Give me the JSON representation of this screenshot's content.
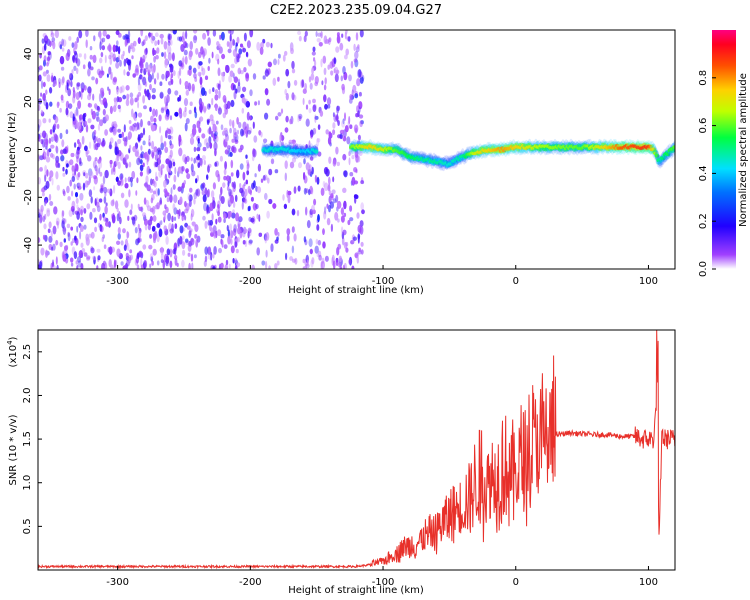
{
  "title": "C2E2.2023.235.09.04.G27",
  "chart_data": [
    {
      "type": "heatmap",
      "xlabel": "Height of straight line (km)",
      "ylabel": "Frequency (Hz)",
      "xlim": [
        -360,
        120
      ],
      "ylim": [
        -50,
        50
      ],
      "xticks": [
        -300,
        -200,
        -100,
        0,
        100
      ],
      "yticks": [
        -40,
        -20,
        0,
        20,
        40
      ],
      "noise_region_x": [
        -360,
        -115
      ],
      "signal_track": {
        "x": [
          -190,
          -175,
          -160,
          -125,
          -110,
          -100,
          -90,
          -80,
          -70,
          -60,
          -50,
          -40,
          -30,
          -20,
          -10,
          0,
          20,
          50,
          80,
          100,
          104,
          108,
          120
        ],
        "y": [
          0,
          0,
          -1,
          1,
          1,
          0,
          0,
          -3,
          -4,
          -5,
          -6,
          -3,
          -1,
          0,
          0,
          1,
          1,
          1,
          1,
          1,
          0,
          -5,
          1
        ],
        "amplitude": [
          0.45,
          0.45,
          0.4,
          0.6,
          0.75,
          0.7,
          0.6,
          0.55,
          0.5,
          0.5,
          0.45,
          0.5,
          0.7,
          0.75,
          0.8,
          0.75,
          0.65,
          0.6,
          0.85,
          0.9,
          0.7,
          0.5,
          0.6
        ]
      },
      "colorbar": {
        "label": "Normalized spectral amplitude",
        "range": [
          0,
          1
        ],
        "ticks": [
          "0.0",
          "0.2",
          "0.4",
          "0.6",
          "0.8"
        ],
        "colors": [
          "#ffffff",
          "#8000ff",
          "#0000ff",
          "#00c0ff",
          "#00ff00",
          "#ffff00",
          "#ff8000",
          "#ff0000",
          "#ff0080"
        ]
      },
      "colors": {
        "noise": "#7a1fe8"
      }
    },
    {
      "type": "line",
      "xlabel": "Height of straight line (km)",
      "ylabel": "SNR (10 * v/v)",
      "multiplier": "(x10",
      "multiplier_exp": "4",
      "multiplier_close": ")",
      "xlim": [
        -360,
        120
      ],
      "ylim": [
        0,
        2.75
      ],
      "xticks": [
        -300,
        -200,
        -100,
        0,
        100
      ],
      "yticks": [
        "0.5",
        "1.0",
        "1.5",
        "2.0",
        "2.5"
      ],
      "color": "#e8302a",
      "x": [
        -360,
        -300,
        -200,
        -120,
        -110,
        -100,
        -95,
        -90,
        -85,
        -80,
        -75,
        -70,
        -65,
        -60,
        -55,
        -50,
        -45,
        -40,
        -35,
        -30,
        -27,
        -25,
        -20,
        -15,
        -10,
        -5,
        0,
        5,
        10,
        15,
        20,
        25,
        30,
        40,
        50,
        60,
        70,
        80,
        90,
        95,
        100,
        104,
        106,
        108,
        110,
        112,
        115,
        120
      ],
      "y": [
        0.04,
        0.04,
        0.04,
        0.04,
        0.06,
        0.1,
        0.15,
        0.2,
        0.25,
        0.28,
        0.3,
        0.35,
        0.4,
        0.45,
        0.55,
        0.6,
        0.7,
        0.75,
        0.85,
        0.95,
        1.2,
        0.9,
        1.0,
        1.05,
        1.2,
        1.1,
        1.1,
        1.25,
        1.3,
        1.45,
        1.45,
        1.5,
        1.55,
        1.57,
        1.56,
        1.55,
        1.55,
        1.53,
        1.53,
        1.5,
        1.5,
        1.5,
        1.9,
        0.3,
        1.55,
        1.5,
        1.5,
        1.5
      ]
    }
  ]
}
